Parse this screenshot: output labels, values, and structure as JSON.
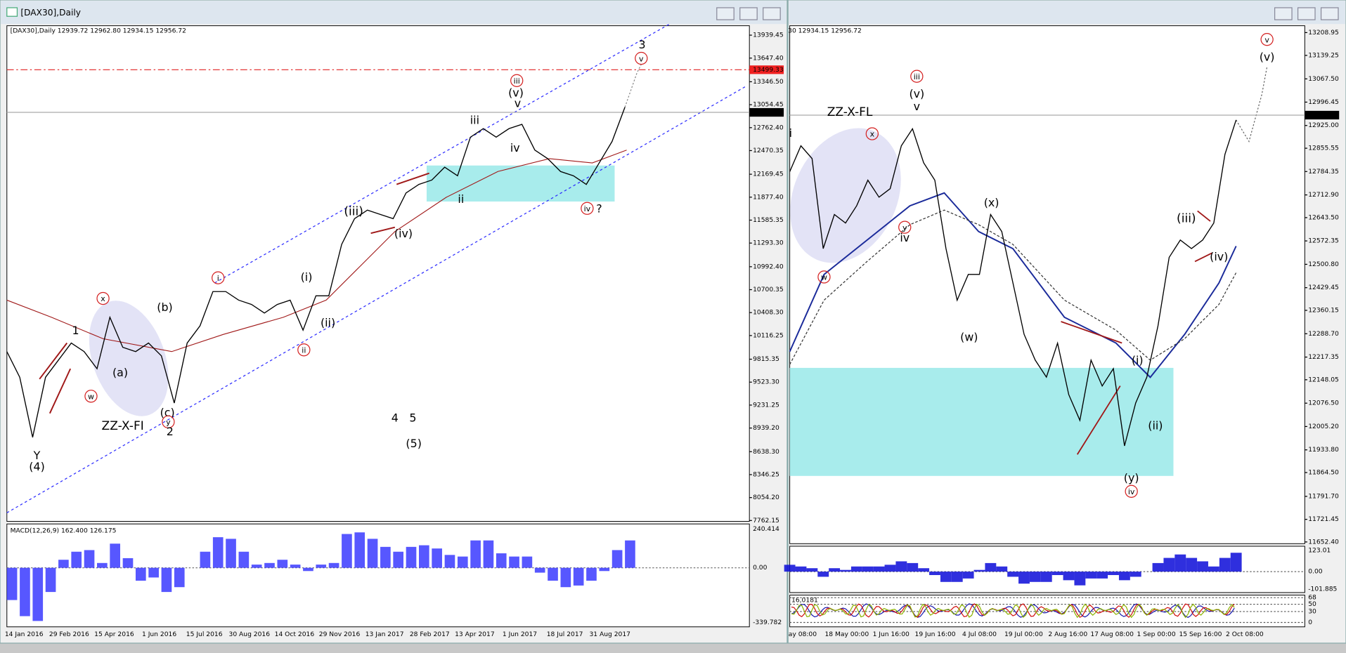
{
  "windows": [
    {
      "title": "[DAX30],Daily",
      "header": "[DAX30],Daily  12939.72 12962.80 12934.15 12956.72",
      "price_axis": {
        "ylim": [
          7762.15,
          13939.45
        ],
        "yticks": [
          13939.45,
          {
            "value": 13647.4,
            "label": "13647.40"
          },
          {
            "value": 13346.5,
            "label": "13346.50"
          },
          13054.45,
          {
            "value": 12762.4,
            "label": "12762.40"
          },
          12470.35,
          12169.45,
          {
            "value": 11877.4,
            "label": "11877.40"
          },
          11585.35,
          {
            "value": 11293.3,
            "label": "11293.30"
          },
          {
            "value": 10992.4,
            "label": "10992.40"
          },
          10700.35,
          {
            "value": 10408.3,
            "label": "10408.30"
          },
          10116.25,
          9815.35,
          {
            "value": 9523.3,
            "label": "9523.30"
          },
          9231.25,
          {
            "value": 8939.2,
            "label": "8939.20"
          },
          {
            "value": 8638.3,
            "label": "8638.30"
          },
          8346.25,
          {
            "value": 8054.2,
            "label": "8054.20"
          },
          7762.15
        ]
      },
      "resistance": 13499.33,
      "last_price": 12956.72,
      "prices": [
        9912,
        9585,
        8821,
        9585,
        9803,
        10021,
        9912,
        9694,
        10349,
        9967,
        9912,
        10021,
        9858,
        9257,
        10021,
        10240,
        10676,
        10676,
        10567,
        10512,
        10403,
        10512,
        10567,
        10185,
        10622,
        10622,
        11276,
        11604,
        11713,
        11658,
        11604,
        11931,
        12040,
        12095,
        12259,
        12150,
        12641,
        12750,
        12641,
        12750,
        12804,
        12477,
        12368,
        12204,
        12150,
        12040,
        12313,
        12586,
        13023
      ],
      "dates": [
        "14 Jan 2016",
        "29 Feb 2016",
        "15 Apr 2016",
        "1 Jun 2016",
        "15 Jul 2016",
        "30 Aug 2016",
        "14 Oct 2016",
        "29 Nov 2016",
        "13 Jan 2017",
        "28 Feb 2017",
        "13 Apr 2017",
        "1 Jun 2017",
        "18 Jul 2017",
        "31 Aug 2017"
      ],
      "indicator": {
        "label": "MACD(12,26,9) 162.400 126.175",
        "ylim": [
          -339.782,
          240.414
        ],
        "yticks": [
          240.414,
          {
            "value": 0,
            "label": "0.00"
          },
          -339.782
        ],
        "values": [
          -200,
          -300,
          -330,
          -150,
          50,
          100,
          110,
          30,
          150,
          60,
          -80,
          -60,
          -150,
          -120,
          0,
          100,
          190,
          180,
          100,
          20,
          30,
          50,
          20,
          -20,
          20,
          30,
          210,
          220,
          180,
          130,
          100,
          130,
          140,
          120,
          80,
          70,
          170,
          170,
          90,
          70,
          70,
          -30,
          -80,
          -120,
          -110,
          -80,
          -20,
          110,
          170
        ]
      },
      "annotations": [
        {
          "text": "3",
          "color": "#1c1cff"
        },
        {
          "text": "v",
          "color": "#d42020",
          "circled": true
        },
        {
          "text": "iii",
          "color": "#d42020",
          "circled": true
        },
        {
          "text": "(v)",
          "color": "#1e8c1e"
        },
        {
          "text": "v",
          "color": "#1c1cff"
        },
        {
          "text": "iii",
          "color": "#1c1cff"
        },
        {
          "text": "iv",
          "color": "#1c1cff"
        },
        {
          "text": "ii",
          "color": "#1c1cff"
        },
        {
          "text": "iv",
          "color": "#d42020",
          "circled": true
        },
        {
          "text": "?",
          "color": "#d42020"
        },
        {
          "text": "(iii)",
          "color": "#1e8c1e"
        },
        {
          "text": "(iv)",
          "color": "#1e8c1e"
        },
        {
          "text": "i",
          "color": "#d42020",
          "circled": true
        },
        {
          "text": "(i)",
          "color": "#1e8c1e"
        },
        {
          "text": "(ii)",
          "color": "#1e8c1e"
        },
        {
          "text": "ii",
          "color": "#d42020",
          "circled": true
        },
        {
          "text": "1",
          "color": "#1c1cff"
        },
        {
          "text": "x",
          "color": "#d42020",
          "circled": true
        },
        {
          "text": "(b)",
          "color": "#1e8c1e"
        },
        {
          "text": "(a)",
          "color": "#1e8c1e"
        },
        {
          "text": "w",
          "color": "#d42020",
          "circled": true
        },
        {
          "text": "ZZ-X-FI",
          "color": "#8a8a8a"
        },
        {
          "text": "(c)",
          "color": "#1e8c1e"
        },
        {
          "text": "y",
          "color": "#d42020",
          "circled": true
        },
        {
          "text": "2",
          "color": "#1c1cff"
        },
        {
          "text": "Y",
          "color": "#1c1cff"
        },
        {
          "text": "(4)",
          "color": "#1e8c1e"
        },
        {
          "text": "4",
          "color": "#1c1cff"
        },
        {
          "text": "5",
          "color": "#1c1cff"
        },
        {
          "text": "(5)",
          "color": "#1e8c1e"
        }
      ]
    },
    {
      "header": "30 12934.15 12956.72",
      "price_axis": {
        "ylim": [
          11652.4,
          13208.95
        ],
        "yticks": [
          13208.95,
          13139.25,
          {
            "value": 13067.5,
            "label": "13067.50"
          },
          12996.45,
          {
            "value": 12925,
            "label": "12925.00"
          },
          12855.55,
          12784.35,
          {
            "value": 12712.9,
            "label": "12712.90"
          },
          {
            "value": 12643.5,
            "label": "12643.50"
          },
          12572.35,
          {
            "value": 12500.8,
            "label": "12500.80"
          },
          12429.45,
          12360.15,
          {
            "value": 12288.7,
            "label": "12288.70"
          },
          12217.35,
          12148.05,
          {
            "value": 12076.5,
            "label": "12076.50"
          },
          {
            "value": 12005.2,
            "label": "12005.20"
          },
          {
            "value": 11933.8,
            "label": "11933.80"
          },
          {
            "value": 11864.5,
            "label": "11864.50"
          },
          {
            "value": 11791.7,
            "label": "11791.70"
          },
          11721.45,
          {
            "value": 11652.4,
            "label": "11652.40"
          }
        ]
      },
      "last_price": 12956.72,
      "prices": [
        12784,
        12863,
        12824,
        12549,
        12653,
        12627,
        12680,
        12758,
        12706,
        12732,
        12863,
        12915,
        12811,
        12758,
        12549,
        12391,
        12470,
        12470,
        12653,
        12601,
        12444,
        12287,
        12208,
        12156,
        12260,
        12103,
        12024,
        12208,
        12129,
        12182,
        11946,
        12077,
        12156,
        12313,
        12522,
        12575,
        12549,
        12575,
        12627,
        12837,
        12942
      ],
      "dates": [
        "ay 08:00",
        "18 May 00:00",
        "1 Jun 16:00",
        "19 Jun 16:00",
        "4 Jul 08:00",
        "19 Jul 00:00",
        "2 Aug 16:00",
        "17 Aug 08:00",
        "1 Sep 00:00",
        "15 Sep 16:00",
        "2 Oct 08:00"
      ],
      "indicator": {
        "ylim": [
          -101.885,
          123.01
        ],
        "yticks": [
          123.01,
          {
            "value": 0,
            "label": "0.00"
          },
          -101.885
        ],
        "values": [
          40,
          30,
          20,
          -30,
          20,
          10,
          30,
          30,
          30,
          40,
          60,
          50,
          20,
          -20,
          -60,
          -60,
          -40,
          10,
          50,
          30,
          -30,
          -70,
          -60,
          -60,
          -20,
          -50,
          -80,
          -40,
          -40,
          -20,
          -50,
          -30,
          0,
          50,
          80,
          100,
          80,
          60,
          30,
          80,
          110
        ]
      },
      "oscillator": {
        "label": "16,0181",
        "ylim": [
          -12,
          75
        ],
        "levels": [
          68,
          50,
          30,
          0
        ]
      },
      "annotations": [
        {
          "text": "ZZ-X-FL",
          "color": "#8a8a8a"
        },
        {
          "text": "i",
          "color": "#1c1cff"
        },
        {
          "text": "x",
          "color": "#d42020",
          "circled": true
        },
        {
          "text": "w",
          "color": "#d42020",
          "circled": true
        },
        {
          "text": "iii",
          "color": "#d42020",
          "circled": true
        },
        {
          "text": "(v)",
          "color": "#1e8c1e"
        },
        {
          "text": "v",
          "color": "#1c1cff"
        },
        {
          "text": "y",
          "color": "#d42020",
          "circled": true
        },
        {
          "text": "iv",
          "color": "#1c1cff"
        },
        {
          "text": "(x)",
          "color": "#1e8c1e"
        },
        {
          "text": "(w)",
          "color": "#1e8c1e"
        },
        {
          "text": "(iii)",
          "color": "#1e8c1e"
        },
        {
          "text": "(iv)",
          "color": "#1e8c1e"
        },
        {
          "text": "(i)",
          "color": "#1e8c1e"
        },
        {
          "text": "(ii)",
          "color": "#1e8c1e"
        },
        {
          "text": "(y)",
          "color": "#1e8c1e"
        },
        {
          "text": "iv",
          "color": "#d42020",
          "circled": true
        },
        {
          "text": "v",
          "color": "#d42020",
          "circled": true
        },
        {
          "text": "(v)",
          "color": "#1e8c1e"
        }
      ]
    }
  ]
}
